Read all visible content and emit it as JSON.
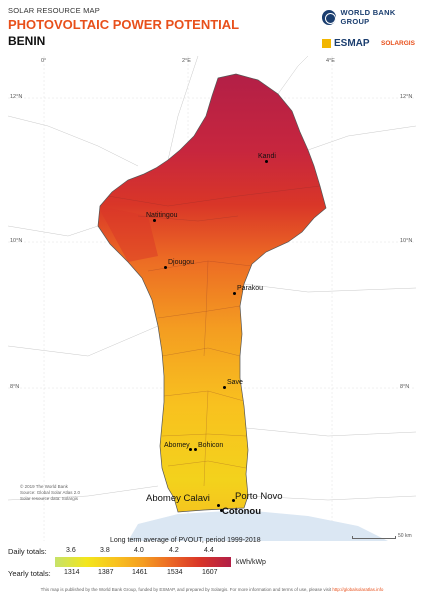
{
  "header": {
    "supertitle": "SOLAR RESOURCE MAP",
    "title": "PHOTOVOLTAIC POWER POTENTIAL",
    "country": "BENIN",
    "logos": {
      "world_bank": "WORLD BANK GROUP",
      "esmap": "ESMAP",
      "solargis": "SOLARGIS"
    }
  },
  "map": {
    "coords": {
      "lon": [
        "0°",
        "2°E",
        "4°E"
      ],
      "lat": [
        "12°N",
        "10°N",
        "8°N"
      ]
    },
    "cities": [
      {
        "name": "Kandi"
      },
      {
        "name": "Natitingou"
      },
      {
        "name": "Djougou"
      },
      {
        "name": "Parakou"
      },
      {
        "name": "Save"
      },
      {
        "name": "Abomey"
      },
      {
        "name": "Bohicon"
      },
      {
        "name": "Porto Novo"
      },
      {
        "name": "Abomey Calavi"
      },
      {
        "name": "Cotonou"
      }
    ],
    "credit_lines": [
      "© 2019 The World Bank",
      "Source: Global Solar Atlas 2.0",
      "Solar resource data: Solargis"
    ],
    "scale_label": "50 km"
  },
  "legend": {
    "title": "Long term average of PVOUT, period 1999-2018",
    "daily_label": "Daily totals:",
    "yearly_label": "Yearly totals:",
    "daily_ticks": [
      "3.6",
      "3.8",
      "4.0",
      "4.2",
      "4.4"
    ],
    "yearly_ticks": [
      "1314",
      "1387",
      "1461",
      "1534",
      "1607"
    ],
    "unit": "kWh/kWp",
    "colors": [
      "#c6e26a",
      "#f3e61c",
      "#f8c11f",
      "#f49d21",
      "#ec6a24",
      "#d93628",
      "#b21f47"
    ]
  },
  "footer": {
    "text": "This map is published by the World Bank Group, funded by ESMAP, and prepared by Solargis. For more information and terms of use, please visit ",
    "link": "http://globalsolaratlas.info"
  }
}
